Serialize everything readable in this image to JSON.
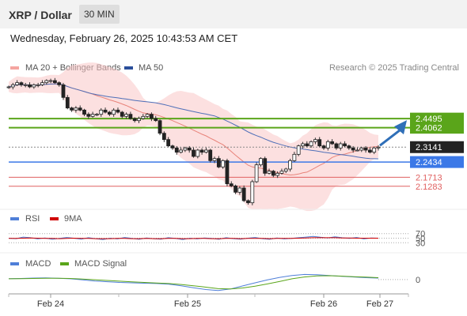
{
  "header": {
    "title": "XRP / Dollar",
    "timeframe": "30 MIN"
  },
  "datetime": "Wednesday, February 26, 2025 10:43:53 AM CET",
  "legend": {
    "ma20": "MA 20 + Bollinger Bands",
    "ma50": "MA 50",
    "research": "Research © 2025 Trading Central",
    "rsi": "RSI",
    "rsi_ma": "9MA",
    "macd": "MACD",
    "macd_signal": "MACD Signal"
  },
  "colors": {
    "bullish": "#222222",
    "bearish": "#222222",
    "ma20": "#e8837a",
    "bollinger": "#f9c6c6",
    "ma50": "#4f6fb8",
    "resistance": "#5aa51a",
    "support": "#e06060",
    "pivot": "#3b78e7",
    "arrow": "#2f6fb8",
    "current": "#222222"
  },
  "chart_data": [
    {
      "type": "candlestick",
      "x_ticks": [
        "Feb 24",
        "Feb 25",
        "Feb 26",
        "Feb 27"
      ],
      "levels": [
        {
          "value": 2.4495,
          "label": "2.4495",
          "kind": "resistance"
        },
        {
          "value": 2.4062,
          "label": "2.4062",
          "kind": "resistance"
        },
        {
          "value": 2.3141,
          "label": "2.3141",
          "kind": "current"
        },
        {
          "value": 2.2434,
          "label": "2.2434",
          "kind": "pivot"
        },
        {
          "value": 2.1713,
          "label": "2.1713",
          "kind": "support"
        },
        {
          "value": 2.1283,
          "label": "2.1283",
          "kind": "support"
        }
      ],
      "ylim": [
        2.03,
        2.66
      ],
      "close": [
        2.6,
        2.61,
        2.62,
        2.61,
        2.61,
        2.6,
        2.61,
        2.61,
        2.62,
        2.63,
        2.63,
        2.62,
        2.61,
        2.55,
        2.5,
        2.49,
        2.5,
        2.49,
        2.47,
        2.46,
        2.47,
        2.47,
        2.49,
        2.48,
        2.47,
        2.49,
        2.48,
        2.46,
        2.47,
        2.45,
        2.44,
        2.45,
        2.46,
        2.47,
        2.45,
        2.44,
        2.38,
        2.35,
        2.32,
        2.31,
        2.29,
        2.3,
        2.31,
        2.3,
        2.27,
        2.3,
        2.29,
        2.3,
        2.25,
        2.26,
        2.22,
        2.25,
        2.14,
        2.13,
        2.1,
        2.12,
        2.06,
        2.05,
        2.15,
        2.23,
        2.26,
        2.19,
        2.2,
        2.18,
        2.19,
        2.2,
        2.21,
        2.25,
        2.28,
        2.32,
        2.33,
        2.32,
        2.34,
        2.35,
        2.32,
        2.31,
        2.34,
        2.33,
        2.31,
        2.33,
        2.32,
        2.31,
        2.3,
        2.3,
        2.31,
        2.3,
        2.29,
        2.31,
        2.3141
      ]
    },
    {
      "type": "line",
      "title": "RSI",
      "levels": [
        70,
        50,
        30
      ],
      "ylim": [
        0,
        100
      ],
      "series": [
        {
          "name": "RSI",
          "values": [
            50,
            48,
            55,
            52,
            47,
            51,
            45,
            49,
            53,
            50,
            46,
            52,
            48,
            44,
            50,
            47,
            53,
            49,
            45,
            51,
            48,
            46,
            52,
            49,
            44,
            50,
            47,
            51,
            49,
            45,
            52,
            48,
            46,
            50,
            53,
            48,
            45,
            51,
            47,
            49,
            52,
            55,
            58,
            54,
            51,
            56,
            52,
            49,
            53,
            47,
            51,
            50
          ]
        },
        {
          "name": "9MA",
          "values": [
            49,
            49,
            50,
            51,
            50,
            49,
            49,
            48,
            49,
            50,
            49,
            49,
            48,
            48,
            48,
            49,
            49,
            48,
            48,
            49,
            48,
            48,
            49,
            49,
            48,
            48,
            49,
            49,
            48,
            48,
            49,
            49,
            48,
            49,
            49,
            49,
            48,
            49,
            49,
            49,
            50,
            51,
            52,
            52,
            52,
            52,
            51,
            51,
            50,
            50,
            50,
            50
          ]
        }
      ]
    },
    {
      "type": "line",
      "title": "MACD",
      "levels": [
        0
      ],
      "ylim": [
        -0.07,
        0.06
      ],
      "series": [
        {
          "name": "MACD",
          "values": [
            0.005,
            0.006,
            0.008,
            0.009,
            0.007,
            0.004,
            -0.002,
            -0.008,
            -0.012,
            -0.016,
            -0.018,
            -0.02,
            -0.022,
            -0.026,
            -0.034,
            -0.045,
            -0.055,
            -0.06,
            -0.052,
            -0.035,
            -0.018,
            -0.002,
            0.012,
            0.022,
            0.028,
            0.026,
            0.022,
            0.018,
            0.014,
            0.01,
            0.008
          ]
        },
        {
          "name": "MACD Signal",
          "values": [
            0.004,
            0.005,
            0.006,
            0.007,
            0.007,
            0.006,
            0.003,
            -0.001,
            -0.005,
            -0.009,
            -0.013,
            -0.016,
            -0.019,
            -0.022,
            -0.027,
            -0.034,
            -0.042,
            -0.05,
            -0.052,
            -0.046,
            -0.036,
            -0.024,
            -0.01,
            0.004,
            0.014,
            0.02,
            0.021,
            0.019,
            0.016,
            0.013,
            0.01
          ]
        }
      ]
    }
  ]
}
